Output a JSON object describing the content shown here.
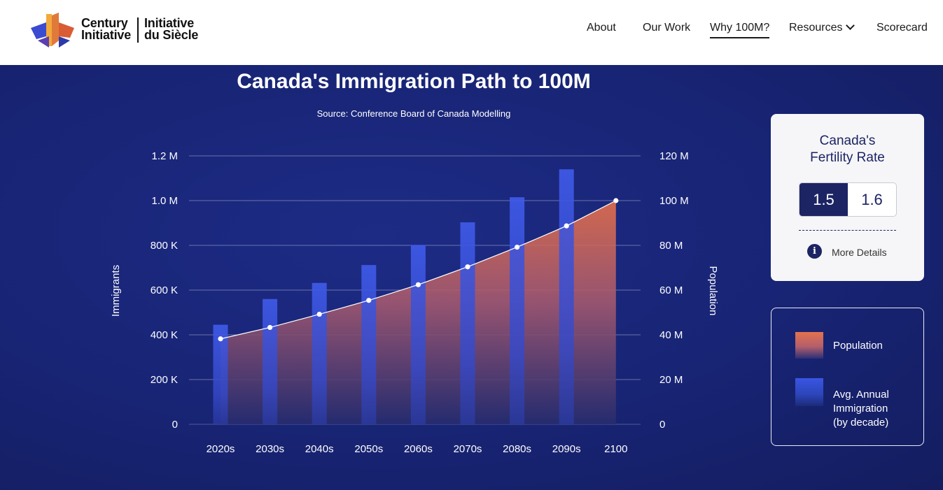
{
  "header": {
    "brand": {
      "en_line1": "Century",
      "en_line2": "Initiative",
      "fr_line1": "Initiative",
      "fr_line2": "du Siècle"
    },
    "nav": [
      {
        "label": "About"
      },
      {
        "label": "Our Work"
      },
      {
        "label": "Why 100M?",
        "active": true
      },
      {
        "label": "Resources",
        "dropdown": true
      },
      {
        "label": "Scorecard"
      }
    ]
  },
  "fertility": {
    "title_line1": "Canada's",
    "title_line2": "Fertility Rate",
    "options": [
      "1.5",
      "1.6"
    ],
    "selected": "1.5",
    "more_details": "More Details",
    "info_icon": "info-icon"
  },
  "chart_data": {
    "type": "bar",
    "title": "Canada's Immigration Path to 100M",
    "subtitle": "Source: Conference Board of Canada Modelling",
    "categories": [
      "2020s",
      "2030s",
      "2040s",
      "2050s",
      "2060s",
      "2070s",
      "2080s",
      "2090s",
      "2100"
    ],
    "y_left": {
      "label": "Immigrants",
      "ylim": [
        0,
        1200000
      ],
      "ticks": [
        "0",
        "200 K",
        "400 K",
        "600 K",
        "800 K",
        "1.0 M",
        "1.2 M"
      ]
    },
    "y_right": {
      "label": "Population",
      "ylim": [
        0,
        120000000
      ],
      "ticks": [
        "0",
        "20 M",
        "40 M",
        "60 M",
        "80 M",
        "100 M",
        "120 M"
      ]
    },
    "grid": true,
    "series": [
      {
        "name": "Avg. Annual Immigration (by decade)",
        "type": "bar",
        "axis": "left",
        "color": "#3d55e0",
        "values": [
          445000,
          560000,
          632000,
          712000,
          802000,
          903000,
          1015000,
          1140000,
          null
        ]
      },
      {
        "name": "Population",
        "type": "area",
        "axis": "right",
        "color": "#e3734d",
        "values": [
          38200000,
          43300000,
          49200000,
          55400000,
          62400000,
          70400000,
          79200000,
          88700000,
          100000000
        ]
      }
    ],
    "legend": {
      "placement": "right",
      "entries": [
        "Population",
        "Avg. Annual\nImmigration\n(by decade)"
      ],
      "lines": [
        "Population",
        "Avg. Annual",
        "Immigration",
        "(by decade)"
      ]
    }
  }
}
